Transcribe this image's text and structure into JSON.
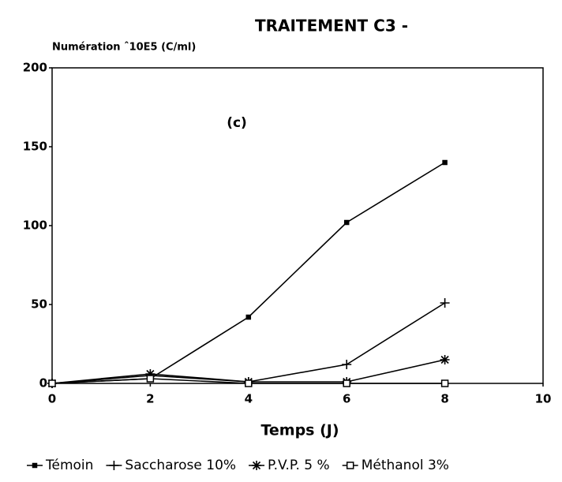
{
  "chart_data": {
    "type": "line",
    "title": "TRAITEMENT C3 -",
    "y_label": "Numération ˆ10E5 (C/ml)",
    "x_label": "Temps (J)",
    "annotation": "(c)",
    "x": [
      0,
      2,
      4,
      6,
      8
    ],
    "series": [
      {
        "name": "Témoin",
        "color": "#000000",
        "marker": "filled-square",
        "values": [
          0,
          3,
          42,
          102,
          140
        ]
      },
      {
        "name": "Saccharose 10%",
        "color": "#000000",
        "marker": "plus",
        "values": [
          0,
          5,
          1,
          12,
          51
        ]
      },
      {
        "name": "P.V.P. 5 %",
        "color": "#000000",
        "marker": "asterisk",
        "values": [
          0,
          6,
          1,
          1,
          15
        ]
      },
      {
        "name": "Méthanol 3%",
        "color": "#000000",
        "marker": "open-square",
        "values": [
          0,
          3,
          0,
          0,
          0
        ]
      }
    ],
    "xlim": [
      0,
      10
    ],
    "xticks": [
      0,
      2,
      4,
      6,
      8,
      10
    ],
    "ylim": [
      0,
      200
    ],
    "yticks": [
      0,
      50,
      100,
      150,
      200
    ],
    "grid": false,
    "legend": "bottom"
  }
}
